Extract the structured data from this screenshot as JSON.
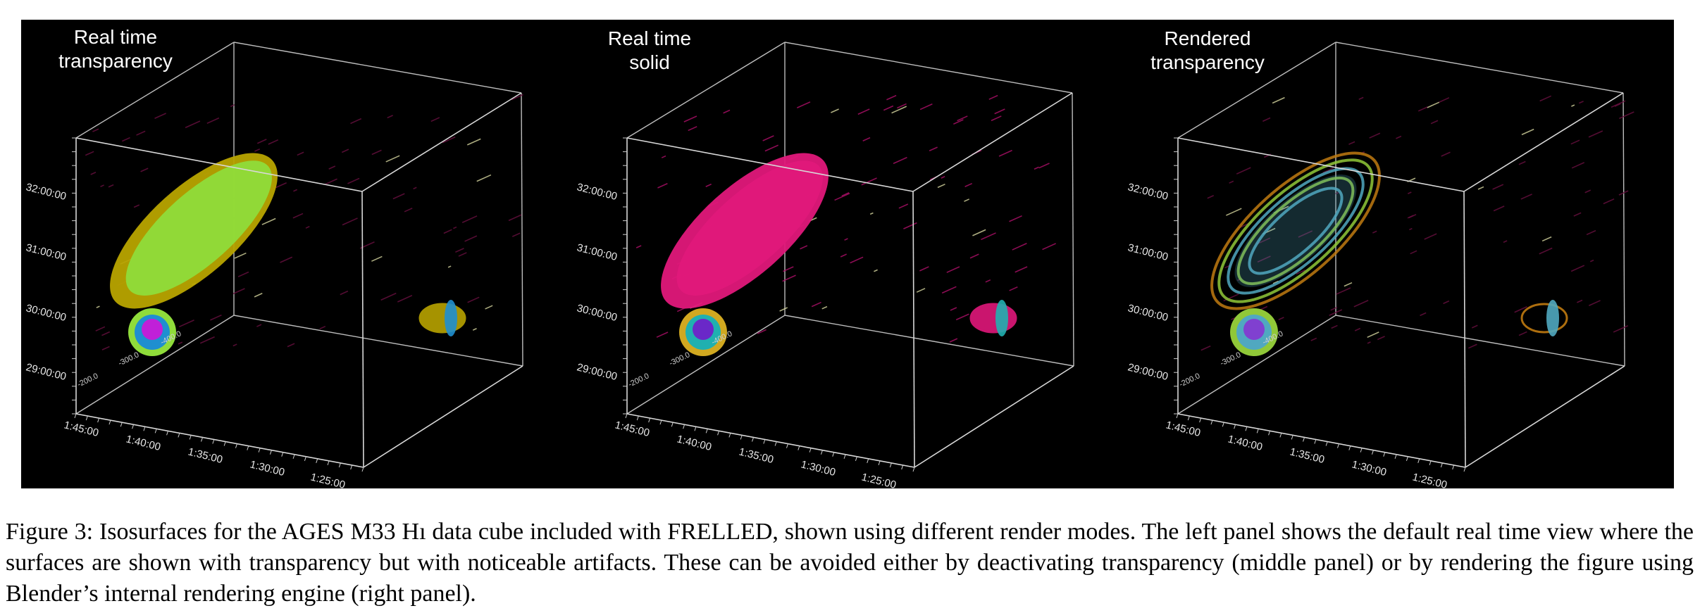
{
  "panels": [
    {
      "title_line1": "Real time",
      "title_line2": "transparency",
      "y_ticks": [
        "32:00:00",
        "31:00:00",
        "30:00:00",
        "29:00:00"
      ],
      "x_ticks": [
        "1:45:00",
        "1:40:00",
        "1:35:00",
        "1:30:00",
        "1:25:00"
      ],
      "z_ticks": [
        "-400.0",
        "-300.0",
        "-200.0"
      ],
      "render_mode": "transparency-artifacts",
      "colors": {
        "outer": "#b8a400",
        "mid": "#8fdc3a",
        "inner": "#1f8fd0",
        "core": "#c020d8"
      }
    },
    {
      "title_line1": "Real time",
      "title_line2": "solid",
      "y_ticks": [
        "32:00:00",
        "31:00:00",
        "30:00:00",
        "29:00:00"
      ],
      "x_ticks": [
        "1:45:00",
        "1:40:00",
        "1:35:00",
        "1:30:00",
        "1:25:00"
      ],
      "z_ticks": [
        "-400.0",
        "-300.0",
        "-200.0"
      ],
      "render_mode": "solid",
      "colors": {
        "outer": "#e0187a",
        "mid": "#d1a820",
        "inner": "#20b0b0",
        "core": "#6a28c8"
      }
    },
    {
      "title_line1": "Rendered",
      "title_line2": "transparency",
      "y_ticks": [
        "32:00:00",
        "31:00:00",
        "30:00:00",
        "29:00:00"
      ],
      "x_ticks": [
        "1:45:00",
        "1:40:00",
        "1:35:00",
        "1:30:00",
        "1:25:00"
      ],
      "z_ticks": [
        "-400.0",
        "-300.0",
        "-200.0"
      ],
      "render_mode": "rendered-transparency",
      "colors": {
        "outer": "#c07a10",
        "mid": "#90c838",
        "inner": "#50a8c0",
        "core": "#8040d0"
      }
    }
  ],
  "caption": {
    "text": "Figure 3: Isosurfaces for the AGES M33 Hı data cube included with FRELLED, shown using different render modes. The left panel shows the default real time view where the surfaces are shown with transparency but with noticeable artifacts. These can be avoided either by deactivating transparency (middle panel) or by rendering the figure using Blender’s internal rendering engine (right panel)."
  }
}
